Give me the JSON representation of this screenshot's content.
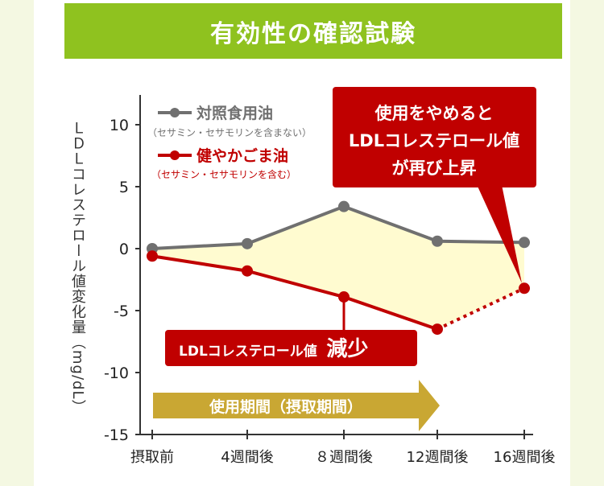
{
  "title": "有効性の確認試験",
  "chart_data": {
    "type": "line",
    "categories": [
      "摂取前",
      "4週間後",
      "８週間後",
      "12週間後",
      "16週間後"
    ],
    "ylabel": "ＬＤＬコレステロール値変化量（mg/dL）",
    "ylim": [
      -15,
      12
    ],
    "yticks": [
      10,
      5,
      0,
      -5,
      -10,
      -15
    ],
    "ytick_labels": [
      "10",
      "5",
      "0",
      "-5",
      "-10",
      "-15"
    ],
    "series": [
      {
        "name": "対照食用油",
        "sub": "（セサミン・セサモリンを含まない）",
        "color": "#707070",
        "values": [
          0.0,
          0.4,
          3.4,
          0.6,
          0.5
        ]
      },
      {
        "name": "健やかごま油",
        "sub": "（セサミン・セサモリンを含む）",
        "color": "#c00000",
        "values": [
          -0.6,
          -1.8,
          -3.9,
          -6.5,
          -3.2
        ]
      }
    ],
    "annotations": {
      "callout": "使用をやめると\nLDLコレステロール値\nが再び上昇",
      "reduction_prefix": "LDLコレステロール値",
      "reduction_big": "減少",
      "period": "使用期間（摂取期間）"
    }
  }
}
